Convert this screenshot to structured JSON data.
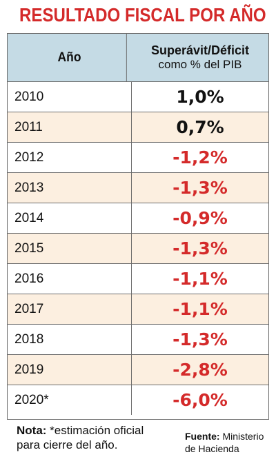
{
  "title": "RESULTADO FISCAL POR AÑO",
  "chart_data": {
    "type": "table",
    "title": "RESULTADO FISCAL POR AÑO",
    "columns": [
      "Año",
      "Superávit/Déficit como % del PIB"
    ],
    "header": {
      "year": "Año",
      "value_line1": "Superávit/Déficit",
      "value_line2": "como % del PIB"
    },
    "categories": [
      "2010",
      "2011",
      "2012",
      "2013",
      "2014",
      "2015",
      "2016",
      "2017",
      "2018",
      "2019",
      "2020*"
    ],
    "values": [
      1.0,
      0.7,
      -1.2,
      -1.3,
      -0.9,
      -1.3,
      -1.1,
      -1.1,
      -1.3,
      -2.8,
      -6.0
    ],
    "labels": [
      "1,0%",
      "0,7%",
      "-1,2%",
      "-1,3%",
      "-0,9%",
      "-1,3%",
      "-1,1%",
      "-1,1%",
      "-1,3%",
      "-2,8%",
      "-6,0%"
    ]
  },
  "colors": {
    "accent_red": "#d42a2a",
    "header_bg": "#c5dbe5",
    "alt_row_bg": "#fcefe0"
  },
  "note": {
    "label": "Nota:",
    "text": " *estimación oficial para cierre del año."
  },
  "source": {
    "label": "Fuente:",
    "text": " Ministerio de Hacienda"
  }
}
